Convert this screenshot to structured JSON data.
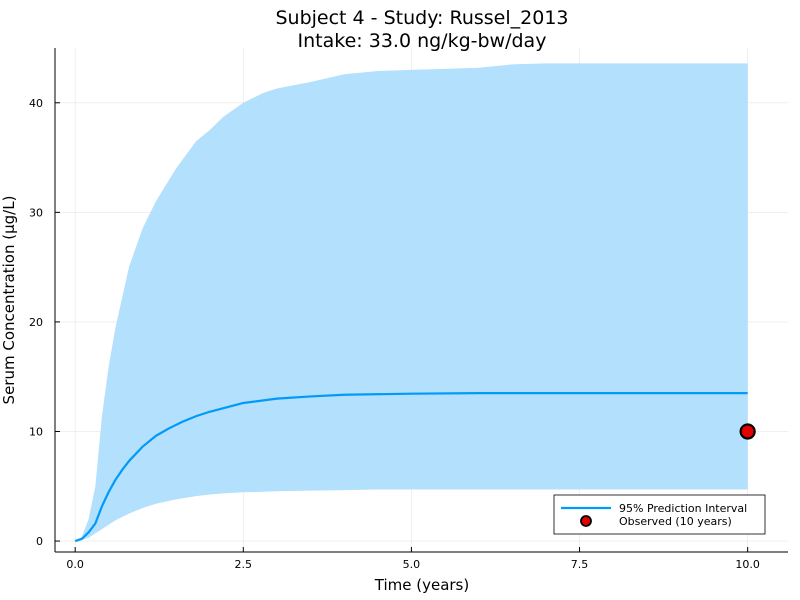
{
  "chart_data": {
    "type": "line",
    "title": "Subject 4 - Study: Russel_2013",
    "subtitle": "Intake: 33.0 ng/kg-bw/day",
    "xlabel": "Time (years)",
    "ylabel": "Serum Concentration (µg/L)",
    "xlim": [
      -0.3,
      10.6
    ],
    "ylim": [
      -1.0,
      45.0
    ],
    "xticks": [
      0.0,
      2.5,
      5.0,
      7.5,
      10.0
    ],
    "xtick_labels": [
      "0.0",
      "2.5",
      "5.0",
      "7.5",
      "10.0"
    ],
    "yticks": [
      0,
      10,
      20,
      30,
      40
    ],
    "ytick_labels": [
      "0",
      "10",
      "20",
      "30",
      "40"
    ],
    "grid": true,
    "legend_position": "bottom-right",
    "colors": {
      "median_line": "#009AFA",
      "band_fill": "#B3E0FC",
      "observed_fill": "#E50000",
      "observed_edge": "#000000"
    },
    "band": {
      "x": [
        0.0,
        0.1,
        0.2,
        0.3,
        0.4,
        0.5,
        0.6,
        0.8,
        1.0,
        1.2,
        1.5,
        1.8,
        2.0,
        2.2,
        2.5,
        2.8,
        3.0,
        3.5,
        4.0,
        4.5,
        5.0,
        5.5,
        6.0,
        6.5,
        7.0,
        8.0,
        9.0,
        10.0
      ],
      "upper": [
        0.0,
        0.4,
        2.0,
        5.0,
        11.5,
        16.0,
        19.5,
        25.0,
        28.5,
        31.0,
        34.0,
        36.5,
        37.5,
        38.7,
        40.0,
        40.9,
        41.3,
        41.9,
        42.6,
        42.9,
        43.0,
        43.1,
        43.2,
        43.5,
        43.6,
        43.6,
        43.6,
        43.6
      ],
      "lower": [
        0.0,
        0.1,
        0.3,
        0.7,
        1.1,
        1.5,
        1.9,
        2.5,
        3.0,
        3.4,
        3.8,
        4.1,
        4.25,
        4.35,
        4.45,
        4.5,
        4.55,
        4.6,
        4.65,
        4.7,
        4.7,
        4.7,
        4.7,
        4.7,
        4.7,
        4.7,
        4.7,
        4.7
      ]
    },
    "series": [
      {
        "name": "95% Prediction Interval",
        "x": [
          0.0,
          0.1,
          0.2,
          0.3,
          0.4,
          0.5,
          0.6,
          0.7,
          0.8,
          1.0,
          1.2,
          1.4,
          1.6,
          1.8,
          2.0,
          2.5,
          3.0,
          3.5,
          4.0,
          5.0,
          6.0,
          7.0,
          8.0,
          9.0,
          10.0
        ],
        "y": [
          0.0,
          0.2,
          0.8,
          1.6,
          3.2,
          4.5,
          5.6,
          6.5,
          7.3,
          8.6,
          9.6,
          10.3,
          10.9,
          11.4,
          11.8,
          12.6,
          13.0,
          13.2,
          13.35,
          13.45,
          13.5,
          13.5,
          13.5,
          13.5,
          13.5
        ]
      },
      {
        "name": "Observed (10 years)",
        "type": "scatter",
        "x": [
          10.0
        ],
        "y": [
          10.0
        ]
      }
    ]
  }
}
